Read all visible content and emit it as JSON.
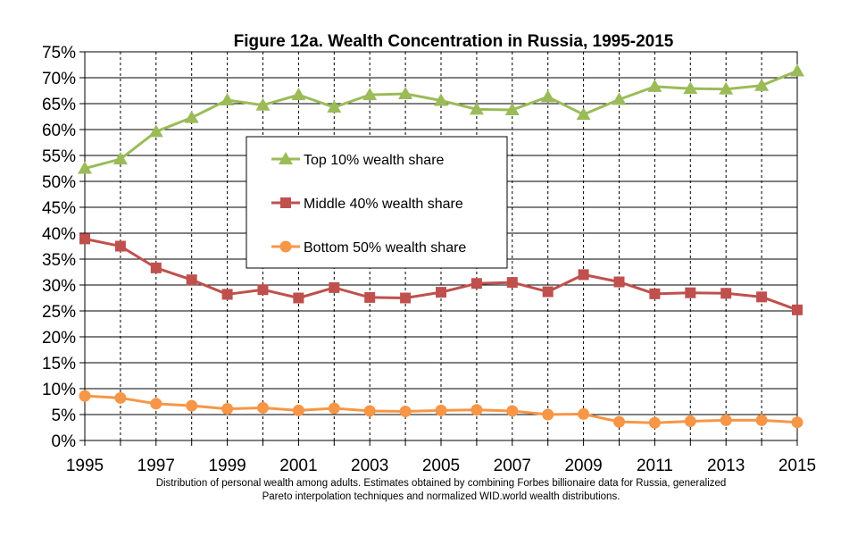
{
  "chart_data": {
    "type": "line",
    "title": "Figure 12a. Wealth Concentration in Russia, 1995-2015",
    "x": [
      1995,
      1996,
      1997,
      1998,
      1999,
      2000,
      2001,
      2002,
      2003,
      2004,
      2005,
      2006,
      2007,
      2008,
      2009,
      2010,
      2011,
      2012,
      2013,
      2014,
      2015
    ],
    "x_tick_labels": [
      "1995",
      "1997",
      "1999",
      "2001",
      "2003",
      "2005",
      "2007",
      "2009",
      "2011",
      "2013",
      "2015"
    ],
    "y_tick_labels": [
      "0%",
      "5%",
      "10%",
      "15%",
      "20%",
      "25%",
      "30%",
      "35%",
      "40%",
      "45%",
      "50%",
      "55%",
      "60%",
      "65%",
      "70%",
      "75%"
    ],
    "xlim": [
      1995,
      2015
    ],
    "ylim": [
      0,
      75
    ],
    "grid": true,
    "legend_position": "upper-center",
    "series": [
      {
        "name": "Top 10% wealth share",
        "color": "#9BBB59",
        "marker": "triangle",
        "values": [
          52.5,
          54.3,
          59.6,
          62.3,
          65.7,
          64.7,
          66.7,
          64.3,
          66.7,
          66.9,
          65.6,
          63.9,
          63.8,
          66.3,
          62.9,
          65.8,
          68.3,
          67.9,
          67.8,
          68.5,
          71.3
        ]
      },
      {
        "name": "Middle 40% wealth share",
        "color": "#C0504D",
        "marker": "square",
        "values": [
          38.9,
          37.5,
          33.3,
          31.0,
          28.2,
          29.1,
          27.5,
          29.5,
          27.6,
          27.5,
          28.6,
          30.3,
          30.5,
          28.7,
          32.0,
          30.6,
          28.3,
          28.5,
          28.4,
          27.7,
          25.2
        ]
      },
      {
        "name": "Bottom 50% wealth share",
        "color": "#F79646",
        "marker": "circle",
        "values": [
          8.6,
          8.2,
          7.1,
          6.7,
          6.1,
          6.3,
          5.8,
          6.2,
          5.7,
          5.6,
          5.8,
          5.9,
          5.7,
          5.0,
          5.1,
          3.6,
          3.4,
          3.7,
          3.9,
          3.9,
          3.5
        ]
      }
    ],
    "footnote_lines": [
      "Distribution of personal wealth among adults. Estimates obtained by combining Forbes billionaire data for Russia, generalized",
      "Pareto interpolation techniques and normalized WID.world wealth distributions."
    ]
  }
}
